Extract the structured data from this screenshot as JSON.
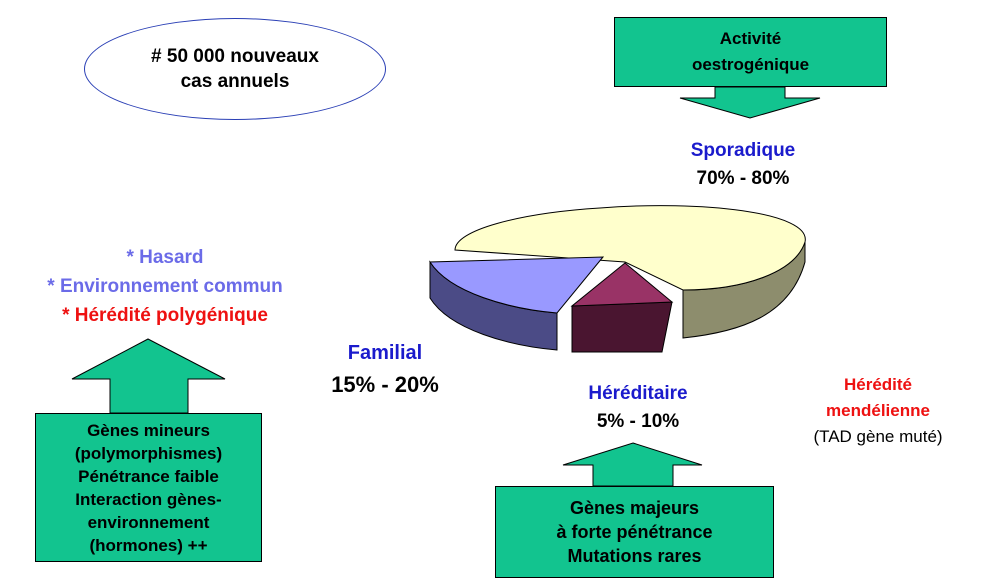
{
  "ellipse": {
    "line1": "# 50 000 nouveaux",
    "line2": "cas annuels"
  },
  "estrogenic_box": {
    "line1": "Activité",
    "line2": "oestrogénique"
  },
  "sporadic": {
    "label": "Sporadique",
    "range": "70% - 80%"
  },
  "familial": {
    "label": "Familial",
    "range": "15% - 20%"
  },
  "hereditary": {
    "label": "Héréditaire",
    "range": "5% - 10%"
  },
  "mendelian": {
    "line1": "Hérédité",
    "line2": "mendélienne",
    "note": "(TAD gène muté)"
  },
  "causes": {
    "hasard": "* Hasard",
    "environnement": "* Environnement commun",
    "polygenique": "* Hérédité polygénique"
  },
  "minor_genes_box": {
    "lines": [
      "Gènes mineurs",
      "(polymorphismes)",
      "Pénétrance faible",
      "Interaction gènes-",
      "environnement",
      "(hormones) ++"
    ]
  },
  "major_genes_box": {
    "lines": [
      "Gènes majeurs",
      "à forte pénétrance",
      "Mutations rares"
    ]
  },
  "chart_data": {
    "type": "pie",
    "categories": [
      "Sporadique",
      "Familial",
      "Héréditaire"
    ],
    "values": [
      75,
      17.5,
      7.5
    ],
    "colors": [
      "#ffffcc",
      "#9999ff",
      "#993366"
    ],
    "style": "3d-exploded"
  },
  "colors": {
    "green_box": "#12c48f",
    "blue_text": "#1b1bcc",
    "light_blue_text": "#6b6be8",
    "red_text": "#ee1111"
  }
}
